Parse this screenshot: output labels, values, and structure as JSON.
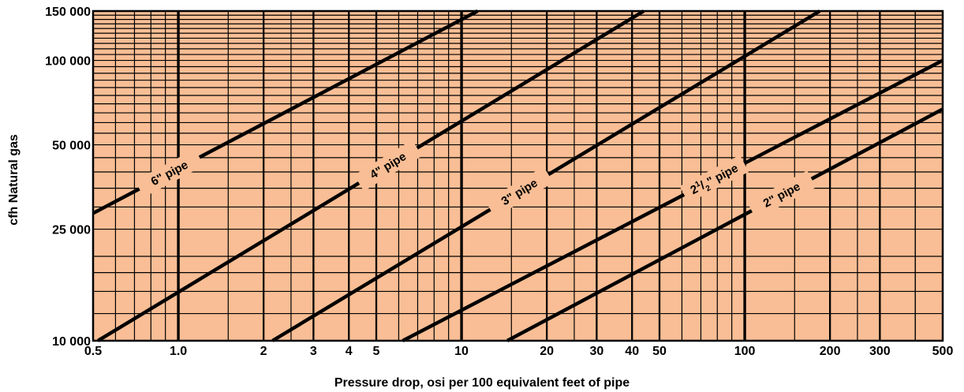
{
  "chart_data": {
    "type": "line",
    "x_scale": "log",
    "y_scale": "log",
    "xlim": [
      0.5,
      500
    ],
    "ylim": [
      10000,
      150000
    ],
    "xlabel": "Pressure drop, osi per 100 equivalent feet of pipe",
    "ylabel": "cfh Natural gas",
    "x_tick_labels": [
      "0.5",
      "1.0",
      "2",
      "3",
      "4",
      "5",
      "10",
      "20",
      "30",
      "40",
      "50",
      "100",
      "200",
      "300",
      "500"
    ],
    "y_tick_labels": [
      "10 000",
      "25 000",
      "50 000",
      "100 000",
      "150 000"
    ],
    "grid": true,
    "background_color": "#F9BE95",
    "line_color": "#000000",
    "series": [
      {
        "name": "6\" pipe",
        "label": "6\" pipe",
        "x": [
          0.5,
          11.4
        ],
        "y": [
          28500,
          150000
        ]
      },
      {
        "name": "4\" pipe",
        "label": "4\" pipe",
        "x": [
          0.52,
          44
        ],
        "y": [
          10000,
          150000
        ]
      },
      {
        "name": "3\" pipe",
        "label": "3\" pipe",
        "x": [
          2.15,
          184
        ],
        "y": [
          10000,
          150000
        ]
      },
      {
        "name": "2½\" pipe",
        "label_main": "2",
        "label_num": "1",
        "label_slash": "/",
        "label_den": "2",
        "label_tail": "\" pipe",
        "x": [
          6.2,
          500
        ],
        "y": [
          10000,
          100000
        ]
      },
      {
        "name": "2\" pipe",
        "label": "2\" pipe",
        "x": [
          14.5,
          500
        ],
        "y": [
          10000,
          67000
        ]
      }
    ]
  }
}
